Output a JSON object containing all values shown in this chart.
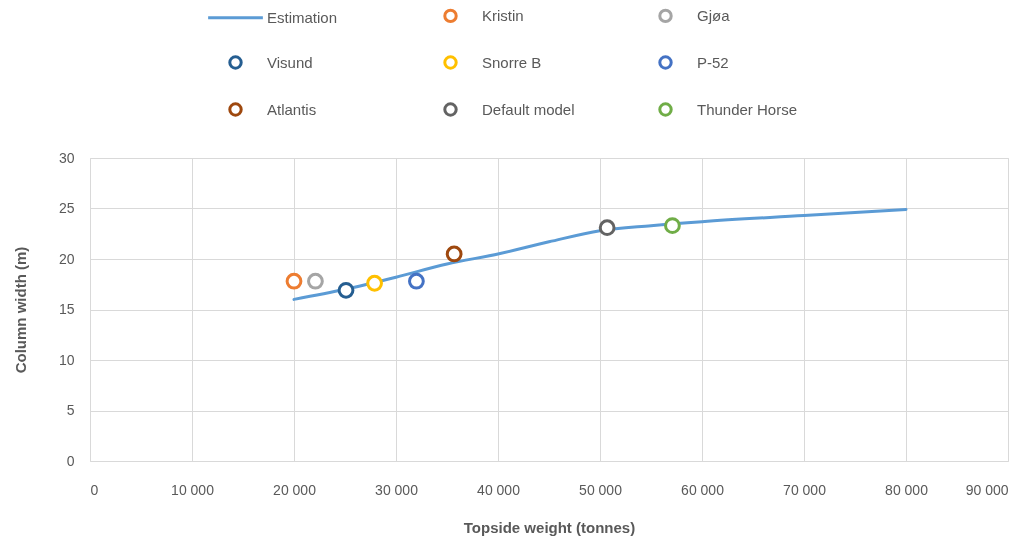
{
  "chart_data": {
    "type": "line",
    "xlabel": "Topside weight (tonnes)",
    "ylabel": "Column width (m)",
    "xlim": [
      0,
      90000
    ],
    "ylim": [
      0,
      30
    ],
    "xticks": [
      0,
      {
        "value": 10000,
        "label": "10 000"
      },
      {
        "value": 20000,
        "label": "20 000"
      },
      {
        "value": 30000,
        "label": "30 000"
      },
      {
        "value": 40000,
        "label": "40 000"
      },
      {
        "value": 50000,
        "label": "50 000"
      },
      {
        "value": 60000,
        "label": "60 000"
      },
      {
        "value": 70000,
        "label": "70 000"
      },
      {
        "value": 80000,
        "label": "80 000"
      },
      {
        "value": 90000,
        "label": "90 000"
      }
    ],
    "yticks": [
      0,
      5,
      10,
      15,
      20,
      25,
      30
    ],
    "grid": true,
    "legend": "top",
    "marker": "circle",
    "series": [
      {
        "name": "Estimation",
        "marker": "none",
        "color": "#5b9bd5",
        "x": [
          20000,
          25000,
          30000,
          35000,
          40000,
          45000,
          50000,
          55000,
          60000,
          70000,
          80000
        ],
        "values": [
          16.0,
          17.0,
          18.2,
          19.5,
          20.5,
          21.7,
          22.8,
          23.3,
          23.7,
          24.3,
          24.9
        ]
      },
      {
        "name": "Kristin",
        "type": "scatter",
        "color": "#ed7d31",
        "x": [
          20000
        ],
        "values": [
          17.8
        ]
      },
      {
        "name": "Gjøa",
        "type": "scatter",
        "color": "#a5a5a5",
        "x": [
          22100
        ],
        "values": [
          17.8
        ]
      },
      {
        "name": "Visund",
        "type": "scatter",
        "color": "#255e91",
        "x": [
          25100
        ],
        "values": [
          16.9
        ]
      },
      {
        "name": "Snorre B",
        "type": "scatter",
        "color": "#ffc000",
        "x": [
          27900
        ],
        "values": [
          17.6
        ]
      },
      {
        "name": "P-52",
        "type": "scatter",
        "color": "#4472c4",
        "x": [
          32000
        ],
        "values": [
          17.8
        ]
      },
      {
        "name": "Atlantis",
        "type": "scatter",
        "color": "#9e480e",
        "x": [
          35700
        ],
        "values": [
          20.5
        ]
      },
      {
        "name": "Default model",
        "type": "scatter",
        "color": "#636363",
        "x": [
          50700
        ],
        "values": [
          23.1
        ]
      },
      {
        "name": "Thunder Horse",
        "type": "scatter",
        "color": "#70ad47",
        "x": [
          57100
        ],
        "values": [
          23.3
        ]
      }
    ]
  }
}
